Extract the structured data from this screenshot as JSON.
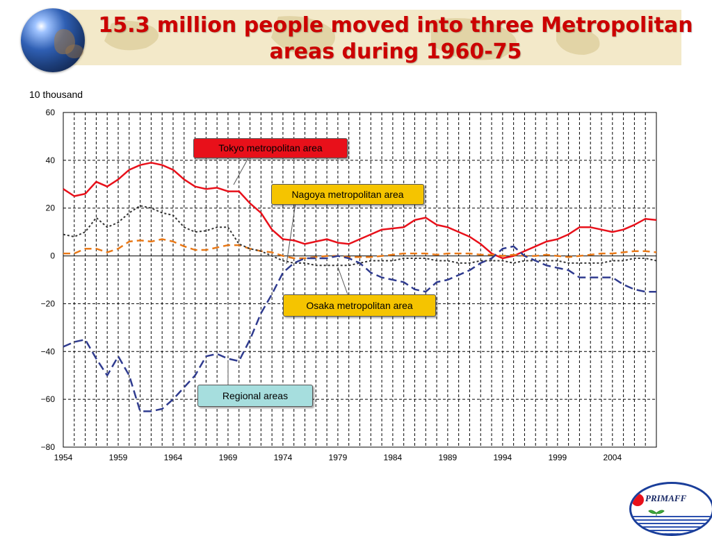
{
  "slide": {
    "title_line1": "15.3 million people moved into three Metropolitan",
    "title_line2": "areas during 1960-75",
    "unit_label": "10 thousand",
    "logo_text": "PRIMAFF"
  },
  "colors": {
    "tokyo": "#e8101a",
    "nagoya": "#e87817",
    "osaka": "#333333",
    "regional": "#2f3b8f",
    "title": "#cc0000"
  },
  "chart_data": {
    "type": "line",
    "title": "",
    "xlabel": "",
    "ylabel": "10 thousand",
    "ylim": [
      -80,
      60
    ],
    "xlim": [
      1954,
      2008
    ],
    "yticks": [
      60,
      40,
      20,
      0,
      -20,
      -40,
      -60,
      -80
    ],
    "xticks": [
      1954,
      1959,
      1964,
      1969,
      1974,
      1979,
      1984,
      1989,
      1994,
      1999,
      2004
    ],
    "grid": true,
    "x": [
      1954,
      1955,
      1956,
      1957,
      1958,
      1959,
      1960,
      1961,
      1962,
      1963,
      1964,
      1965,
      1966,
      1967,
      1968,
      1969,
      1970,
      1971,
      1972,
      1973,
      1974,
      1975,
      1976,
      1977,
      1978,
      1979,
      1980,
      1981,
      1982,
      1983,
      1984,
      1985,
      1986,
      1987,
      1988,
      1989,
      1990,
      1991,
      1992,
      1993,
      1994,
      1995,
      1996,
      1997,
      1998,
      1999,
      2000,
      2001,
      2002,
      2003,
      2004,
      2005,
      2006,
      2007,
      2008
    ],
    "series": [
      {
        "name": "Tokyo metropolitan area",
        "values": [
          28,
          25,
          26,
          31,
          29,
          32,
          36,
          38,
          39,
          38,
          36,
          32,
          29,
          28,
          28.5,
          27,
          27,
          22,
          18,
          11,
          7,
          6.5,
          5,
          6,
          7,
          5.5,
          5,
          7,
          9,
          11,
          11.5,
          12,
          15,
          16,
          13,
          12,
          10,
          8,
          5,
          1,
          -1,
          0,
          2,
          4,
          6,
          7,
          9,
          12,
          12,
          11,
          10,
          11,
          13,
          15.5,
          15
        ]
      },
      {
        "name": "Nagoya metropolitan area",
        "values": [
          1,
          1,
          3,
          3,
          1.5,
          3,
          6,
          6.5,
          6,
          7,
          6,
          4,
          2.5,
          2.5,
          3.5,
          4.5,
          4.5,
          3,
          2,
          1.5,
          0,
          -1,
          -1,
          -0.5,
          0,
          0,
          -0.5,
          -0.5,
          -0.5,
          0,
          0.5,
          1,
          1,
          1,
          0.5,
          1,
          1,
          1,
          0.5,
          0.5,
          0,
          0.5,
          0,
          0,
          0.5,
          0,
          -0.5,
          0,
          0.5,
          1,
          1,
          1.5,
          2,
          2,
          1.5
        ]
      },
      {
        "name": "Osaka metropolitan area",
        "values": [
          9,
          8,
          10,
          16,
          12,
          14,
          18,
          21,
          20,
          18,
          17,
          12,
          10,
          10.5,
          12,
          12,
          5,
          3,
          2,
          0,
          -2,
          -3,
          -3,
          -4,
          -4,
          -4,
          -4,
          -3,
          -2,
          -2,
          -2,
          -1,
          -1,
          -1,
          -2,
          -2,
          -3,
          -3,
          -2,
          -2,
          -2,
          -3,
          -2,
          -2,
          -2,
          -2,
          -3,
          -3,
          -3,
          -3,
          -2,
          -2,
          -1,
          -1,
          -2
        ]
      },
      {
        "name": "Regional areas",
        "values": [
          -38,
          -36,
          -35,
          -43,
          -50,
          -42,
          -50,
          -65,
          -65,
          -64,
          -60,
          -55,
          -50,
          -42,
          -41,
          -43,
          -44,
          -35,
          -24,
          -16,
          -7,
          -3,
          -1,
          -1,
          -1,
          0,
          -1,
          -3,
          -7,
          -9,
          -10,
          -11,
          -14,
          -15,
          -11,
          -10,
          -8,
          -6,
          -3,
          -1,
          3,
          4,
          0,
          -2,
          -4,
          -5,
          -6,
          -9,
          -9,
          -9,
          -9,
          -12,
          -14,
          -15,
          -15
        ]
      }
    ],
    "annotations": [
      "Tokyo metropolitan area",
      "Nagoya metropolitan area",
      "Osaka metropolitan area",
      "Regional areas"
    ]
  }
}
